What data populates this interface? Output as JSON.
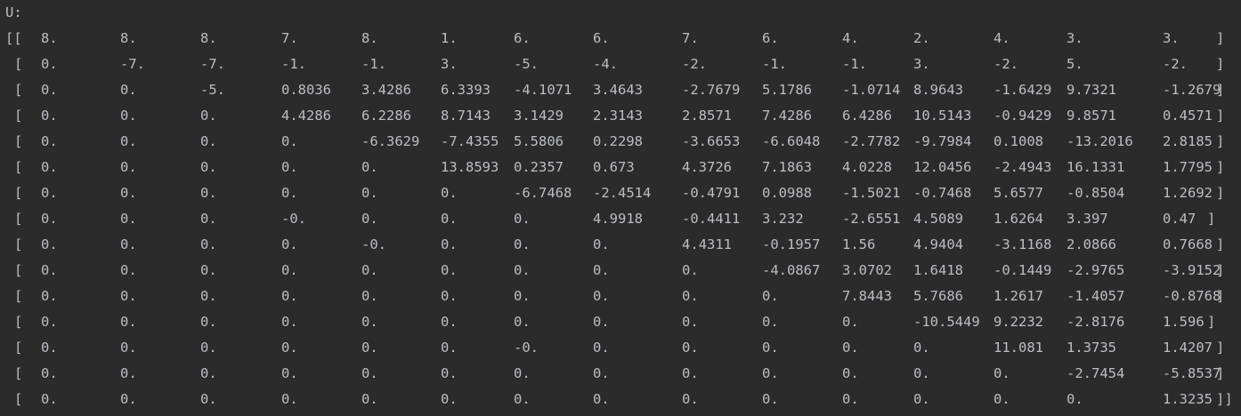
{
  "console": {
    "label": "U:",
    "rows": [
      {
        "prefix": "[[",
        "values": [
          "8.",
          "8.",
          "8.",
          "7.",
          "8.",
          "1.",
          "6.",
          "6.",
          "7.",
          "6.",
          "4.",
          "2.",
          "4.",
          "3.",
          "3."
        ],
        "suffix": "]"
      },
      {
        "prefix": "[",
        "values": [
          "0.",
          "-7.",
          "-7.",
          "-1.",
          "-1.",
          "3.",
          "-5.",
          "-4.",
          "-2.",
          "-1.",
          "-1.",
          "3.",
          "-2.",
          "5.",
          "-2."
        ],
        "suffix": "]"
      },
      {
        "prefix": "[",
        "values": [
          "0.",
          "0.",
          "-5.",
          "0.8036",
          "3.4286",
          "6.3393",
          "-4.1071",
          "3.4643",
          "-2.7679",
          "5.1786",
          "-1.0714",
          "8.9643",
          "-1.6429",
          "9.7321",
          "-1.2679"
        ],
        "suffix": "]"
      },
      {
        "prefix": "[",
        "values": [
          "0.",
          "0.",
          "0.",
          "4.4286",
          "6.2286",
          "8.7143",
          "3.1429",
          "2.3143",
          "2.8571",
          "7.4286",
          "6.4286",
          "10.5143",
          "-0.9429",
          "9.8571",
          "0.4571"
        ],
        "suffix": "]"
      },
      {
        "prefix": "[",
        "values": [
          "0.",
          "0.",
          "0.",
          "0.",
          "-6.3629",
          "-7.4355",
          "5.5806",
          "0.2298",
          "-3.6653",
          "-6.6048",
          "-2.7782",
          "-9.7984",
          "0.1008",
          "-13.2016",
          "2.8185"
        ],
        "suffix": "]"
      },
      {
        "prefix": "[",
        "values": [
          "0.",
          "0.",
          "0.",
          "0.",
          "0.",
          "13.8593",
          "0.2357",
          "0.673",
          "4.3726",
          "7.1863",
          "4.0228",
          "12.0456",
          "-2.4943",
          "16.1331",
          "1.7795"
        ],
        "suffix": "]"
      },
      {
        "prefix": "[",
        "values": [
          "0.",
          "0.",
          "0.",
          "0.",
          "0.",
          "0.",
          "-6.7468",
          "-2.4514",
          "-0.4791",
          "0.0988",
          "-1.5021",
          "-0.7468",
          "5.6577",
          "-0.8504",
          "1.2692"
        ],
        "suffix": "]"
      },
      {
        "prefix": "[",
        "values": [
          "0.",
          "0.",
          "0.",
          "-0.",
          "0.",
          "0.",
          "0.",
          "4.9918",
          "-0.4411",
          "3.232",
          "-2.6551",
          "4.5089",
          "1.6264",
          "3.397",
          "0.47"
        ],
        "suffix": "]"
      },
      {
        "prefix": "[",
        "values": [
          "0.",
          "0.",
          "0.",
          "0.",
          "-0.",
          "0.",
          "0.",
          "0.",
          "4.4311",
          "-0.1957",
          "1.56",
          "4.9404",
          "-3.1168",
          "2.0866",
          "0.7668"
        ],
        "suffix": "]"
      },
      {
        "prefix": "[",
        "values": [
          "0.",
          "0.",
          "0.",
          "0.",
          "0.",
          "0.",
          "0.",
          "0.",
          "0.",
          "-4.0867",
          "3.0702",
          "1.6418",
          "-0.1449",
          "-2.9765",
          "-3.9152"
        ],
        "suffix": "]"
      },
      {
        "prefix": "[",
        "values": [
          "0.",
          "0.",
          "0.",
          "0.",
          "0.",
          "0.",
          "0.",
          "0.",
          "0.",
          "0.",
          "7.8443",
          "5.7686",
          "1.2617",
          "-1.4057",
          "-0.8768"
        ],
        "suffix": "]"
      },
      {
        "prefix": "[",
        "values": [
          "0.",
          "0.",
          "0.",
          "0.",
          "0.",
          "0.",
          "0.",
          "0.",
          "0.",
          "0.",
          "0.",
          "-10.5449",
          "9.2232",
          "-2.8176",
          "1.596"
        ],
        "suffix": "]"
      },
      {
        "prefix": "[",
        "values": [
          "0.",
          "0.",
          "0.",
          "0.",
          "0.",
          "0.",
          "-0.",
          "0.",
          "0.",
          "0.",
          "0.",
          "0.",
          "11.081",
          "1.3735",
          "1.4207"
        ],
        "suffix": "]"
      },
      {
        "prefix": "[",
        "values": [
          "0.",
          "0.",
          "0.",
          "0.",
          "0.",
          "0.",
          "0.",
          "0.",
          "0.",
          "0.",
          "0.",
          "0.",
          "0.",
          "-2.7454",
          "-5.8537"
        ],
        "suffix": "]"
      },
      {
        "prefix": "[",
        "values": [
          "0.",
          "0.",
          "0.",
          "0.",
          "0.",
          "0.",
          "0.",
          "0.",
          "0.",
          "0.",
          "0.",
          "0.",
          "0.",
          "0.",
          "1.3235"
        ],
        "suffix": "]]"
      }
    ]
  }
}
